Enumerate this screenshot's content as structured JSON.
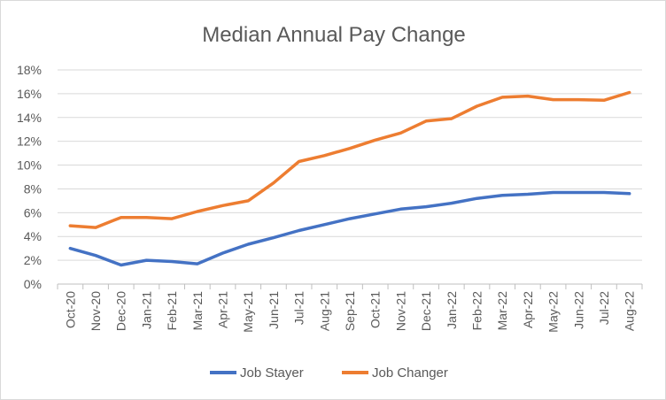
{
  "chart_data": {
    "type": "line",
    "title": "Median Annual Pay Change",
    "xlabel": "",
    "ylabel": "",
    "categories": [
      "Oct-20",
      "Nov-20",
      "Dec-20",
      "Jan-21",
      "Feb-21",
      "Mar-21",
      "Apr-21",
      "May-21",
      "Jun-21",
      "Jul-21",
      "Aug-21",
      "Sep-21",
      "Oct-21",
      "Nov-21",
      "Dec-21",
      "Jan-22",
      "Feb-22",
      "Mar-22",
      "Apr-22",
      "May-22",
      "Jun-22",
      "Jul-22",
      "Aug-22"
    ],
    "yticks": [
      "0%",
      "2%",
      "4%",
      "6%",
      "8%",
      "10%",
      "12%",
      "14%",
      "16%",
      "18%"
    ],
    "ylim": [
      0,
      18
    ],
    "grid": true,
    "legend_position": "bottom",
    "series": [
      {
        "name": "Job Stayer",
        "color": "#4472c4",
        "values": [
          3.0,
          2.4,
          1.6,
          2.0,
          1.9,
          1.7,
          2.6,
          3.35,
          3.9,
          4.5,
          5.0,
          5.5,
          5.9,
          6.3,
          6.5,
          6.8,
          7.2,
          7.45,
          7.55,
          7.7,
          7.7,
          7.7,
          7.6
        ]
      },
      {
        "name": "Job Changer",
        "color": "#ed7d31",
        "values": [
          4.9,
          4.75,
          5.6,
          5.6,
          5.5,
          6.1,
          6.6,
          7.0,
          8.5,
          10.3,
          10.8,
          11.4,
          12.1,
          12.7,
          13.7,
          13.9,
          14.95,
          15.7,
          15.8,
          15.5,
          15.5,
          15.45,
          16.1
        ]
      }
    ]
  }
}
